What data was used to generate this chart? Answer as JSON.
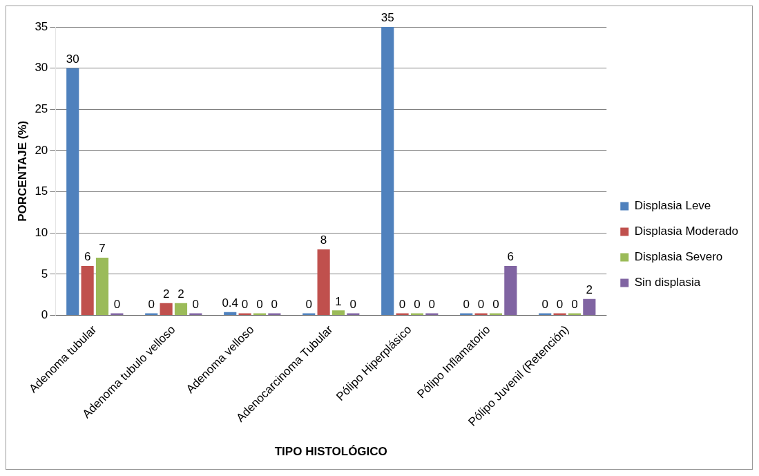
{
  "chart_data": {
    "type": "bar",
    "xlabel": "TIPO HISTOLÓGICO",
    "ylabel": "PORCENTAJE (%)",
    "categories": [
      "Adenoma tubular",
      "Adenoma tubulo velloso",
      "Adenoma velloso",
      "Adenocarcinoma Tubular",
      "Pólipo Hiperplásico",
      "Pólipo Inflamatorio",
      "Pólipo Juvenil (Retención)"
    ],
    "series": [
      {
        "name": "Displasia Leve",
        "color": "#4f81bd",
        "values": [
          30,
          0,
          0.4,
          0,
          35,
          0,
          0
        ],
        "value_labels": [
          "30",
          "0",
          "0.4",
          "0",
          "35",
          "0",
          "0"
        ]
      },
      {
        "name": "Displasia Moderado",
        "color": "#c0504d",
        "values": [
          6,
          1.5,
          0,
          8,
          0,
          0,
          0
        ],
        "value_labels": [
          "6",
          "2",
          "0",
          "8",
          "0",
          "0",
          "0"
        ]
      },
      {
        "name": "Displasia Severo",
        "color": "#9bbb59",
        "values": [
          7,
          1.5,
          0,
          0.6,
          0,
          0,
          0
        ],
        "value_labels": [
          "7",
          "2",
          "0",
          "1",
          "0",
          "0",
          "0"
        ]
      },
      {
        "name": "Sin displasia",
        "color": "#8064a2",
        "values": [
          0,
          0,
          0,
          0,
          0,
          6,
          2
        ],
        "value_labels": [
          "0",
          "0",
          "0",
          "0",
          "0",
          "6",
          "2"
        ]
      }
    ],
    "ylim": [
      0,
      35
    ],
    "yticks": [
      0,
      5,
      10,
      15,
      20,
      25,
      30,
      35
    ],
    "grid": "y",
    "legend": "right"
  }
}
